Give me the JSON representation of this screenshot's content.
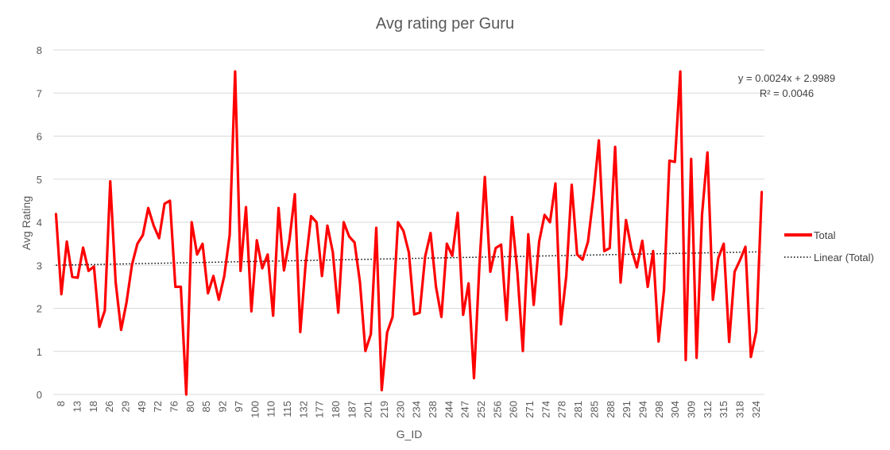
{
  "chart_data": {
    "type": "line",
    "title": "Avg rating per Guru",
    "xlabel": "G_ID",
    "ylabel": "Avg Rating",
    "ylim": [
      0,
      8
    ],
    "yticks": [
      0,
      1,
      2,
      3,
      4,
      5,
      6,
      7,
      8
    ],
    "grid": "horizontal",
    "legend_position": "right",
    "x_tick_labels": [
      "8",
      "13",
      "18",
      "26",
      "29",
      "49",
      "72",
      "76",
      "80",
      "85",
      "92",
      "97",
      "100",
      "110",
      "115",
      "132",
      "177",
      "180",
      "187",
      "201",
      "219",
      "230",
      "234",
      "238",
      "244",
      "247",
      "252",
      "256",
      "260",
      "271",
      "274",
      "278",
      "281",
      "285",
      "288",
      "291",
      "294",
      "298",
      "304",
      "309",
      "312",
      "315",
      "318",
      "324"
    ],
    "series": [
      {
        "name": "Total",
        "color": "#ff0000",
        "values": [
          4.2,
          2.33,
          3.55,
          2.73,
          2.71,
          3.41,
          2.87,
          2.97,
          1.57,
          1.95,
          4.95,
          2.6,
          1.5,
          2.14,
          3.01,
          3.5,
          3.7,
          4.33,
          3.92,
          3.63,
          4.43,
          4.5,
          2.5,
          2.5,
          0.0,
          4.0,
          3.25,
          3.5,
          2.35,
          2.75,
          2.2,
          2.75,
          3.7,
          7.5,
          2.87,
          4.35,
          1.93,
          3.58,
          2.93,
          3.25,
          1.83,
          4.33,
          2.88,
          3.58,
          4.65,
          1.45,
          3.05,
          4.14,
          4.0,
          2.75,
          3.92,
          3.3,
          1.9,
          4.0,
          3.67,
          3.53,
          2.6,
          1.01,
          1.4,
          3.87,
          0.1,
          1.44,
          1.8,
          4.0,
          3.8,
          3.3,
          1.86,
          1.9,
          3.2,
          3.75,
          2.5,
          1.8,
          3.5,
          3.22,
          4.22,
          1.85,
          2.58,
          0.38,
          3.0,
          5.05,
          2.85,
          3.4,
          3.48,
          1.73,
          4.12,
          2.83,
          1.01,
          3.72,
          2.08,
          3.55,
          4.17,
          4.0,
          4.9,
          1.63,
          2.75,
          4.87,
          3.25,
          3.13,
          3.55,
          4.6,
          5.9,
          3.33,
          3.4,
          5.75,
          2.6,
          4.05,
          3.38,
          2.95,
          3.57,
          2.5,
          3.33,
          1.23,
          2.42,
          5.43,
          5.4,
          7.5,
          0.8,
          5.47,
          0.85,
          4.17,
          5.62,
          2.2,
          3.17,
          3.5,
          1.22,
          2.85,
          3.12,
          3.43,
          0.87,
          1.47,
          4.71
        ]
      }
    ],
    "trendline": {
      "name": "Linear (Total)",
      "slope": 0.0024,
      "intercept": 2.9989,
      "equation": "y = 0.0024x + 2.9989",
      "r_squared": "R² = 0.0046",
      "style": "dotted",
      "color": "#000000"
    }
  }
}
